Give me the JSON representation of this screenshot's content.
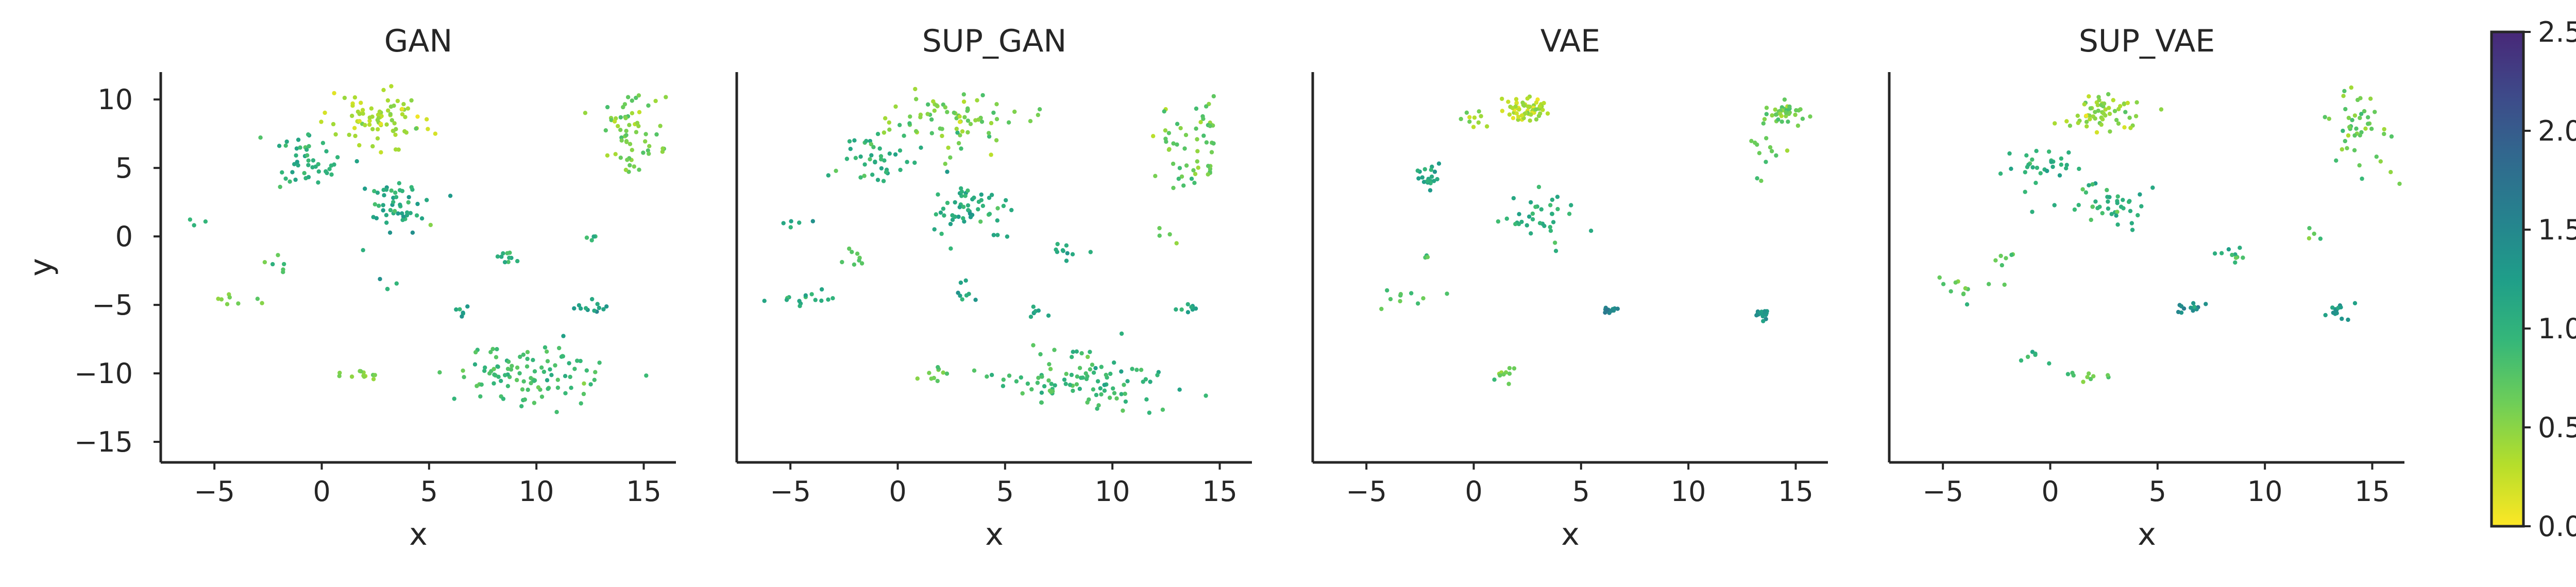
{
  "chart_data": {
    "type": "scatter",
    "panels": [
      {
        "title": "GAN",
        "xlabel": "x",
        "ylabel": "y",
        "xlim": [
          -7.5,
          16.5
        ],
        "ylim": [
          -16.5,
          12
        ],
        "xticks": [
          -5,
          0,
          5,
          10,
          15
        ],
        "yticks": [
          10,
          5,
          0,
          -5,
          -10,
          -15
        ],
        "clusters": [
          {
            "x": 2.5,
            "y": 8.5,
            "sx": 1.2,
            "sy": 1.0,
            "n": 80,
            "c": 0.3
          },
          {
            "x": -0.5,
            "y": 5.5,
            "sx": 0.8,
            "sy": 0.9,
            "n": 45,
            "c": 0.9
          },
          {
            "x": 3.5,
            "y": 2.0,
            "sx": 0.8,
            "sy": 1.0,
            "n": 50,
            "c": 0.95
          },
          {
            "x": 14.5,
            "y": 7.5,
            "sx": 0.7,
            "sy": 1.3,
            "n": 60,
            "c": 0.5
          },
          {
            "x": 9.5,
            "y": -10.0,
            "sx": 1.7,
            "sy": 1.1,
            "n": 100,
            "c": 0.75
          },
          {
            "x": 12.5,
            "y": -5.2,
            "sx": 0.4,
            "sy": 0.3,
            "n": 12,
            "c": 1.05
          },
          {
            "x": 8.5,
            "y": -1.5,
            "sx": 0.5,
            "sy": 0.3,
            "n": 10,
            "c": 0.9
          },
          {
            "x": 1.8,
            "y": -10.0,
            "sx": 0.5,
            "sy": 0.3,
            "n": 12,
            "c": 0.45
          },
          {
            "x": -2.0,
            "y": -2.0,
            "sx": 0.3,
            "sy": 0.3,
            "n": 6,
            "c": 0.7
          },
          {
            "x": -4.0,
            "y": -4.5,
            "sx": 0.8,
            "sy": 0.3,
            "n": 8,
            "c": 0.5
          },
          {
            "x": -6.0,
            "y": 1.0,
            "sx": 0.4,
            "sy": 0.2,
            "n": 3,
            "c": 0.9
          },
          {
            "x": 6.5,
            "y": -5.5,
            "sx": 0.3,
            "sy": 0.3,
            "n": 6,
            "c": 1.05
          },
          {
            "x": 12.5,
            "y": 0.0,
            "sx": 0.3,
            "sy": 0.3,
            "n": 4,
            "c": 0.8
          },
          {
            "x": 3.0,
            "y": -4.0,
            "sx": 0.3,
            "sy": 0.4,
            "n": 4,
            "c": 0.9
          }
        ]
      },
      {
        "title": "SUP_GAN",
        "xlabel": "x",
        "ylabel": "",
        "xlim": [
          -7.5,
          16.5
        ],
        "ylim": [
          -16.5,
          12
        ],
        "xticks": [
          -5,
          0,
          5,
          10,
          15
        ],
        "yticks": [],
        "clusters": [
          {
            "x": 2.5,
            "y": 8.5,
            "sx": 1.3,
            "sy": 1.1,
            "n": 75,
            "c": 0.5
          },
          {
            "x": -1.0,
            "y": 5.5,
            "sx": 0.9,
            "sy": 0.9,
            "n": 40,
            "c": 0.85
          },
          {
            "x": 3.5,
            "y": 2.0,
            "sx": 0.9,
            "sy": 1.1,
            "n": 55,
            "c": 0.95
          },
          {
            "x": 14.0,
            "y": 6.5,
            "sx": 0.9,
            "sy": 1.8,
            "n": 55,
            "c": 0.6
          },
          {
            "x": 9.0,
            "y": -10.5,
            "sx": 1.9,
            "sy": 1.1,
            "n": 100,
            "c": 0.8
          },
          {
            "x": 13.5,
            "y": -5.2,
            "sx": 0.3,
            "sy": 0.3,
            "n": 8,
            "c": 1.0
          },
          {
            "x": 8.0,
            "y": -1.0,
            "sx": 0.5,
            "sy": 0.3,
            "n": 10,
            "c": 0.9
          },
          {
            "x": 1.8,
            "y": -10.0,
            "sx": 0.5,
            "sy": 0.3,
            "n": 10,
            "c": 0.5
          },
          {
            "x": -2.0,
            "y": -1.5,
            "sx": 0.3,
            "sy": 0.4,
            "n": 8,
            "c": 0.7
          },
          {
            "x": -4.0,
            "y": -4.5,
            "sx": 0.9,
            "sy": 0.3,
            "n": 15,
            "c": 0.9
          },
          {
            "x": -5.0,
            "y": 1.0,
            "sx": 0.5,
            "sy": 0.2,
            "n": 5,
            "c": 0.9
          },
          {
            "x": 6.5,
            "y": -5.5,
            "sx": 0.4,
            "sy": 0.3,
            "n": 7,
            "c": 1.05
          },
          {
            "x": 3.0,
            "y": -4.0,
            "sx": 0.3,
            "sy": 0.5,
            "n": 8,
            "c": 1.0
          },
          {
            "x": 12.5,
            "y": 0.0,
            "sx": 0.4,
            "sy": 0.4,
            "n": 4,
            "c": 0.7
          }
        ]
      },
      {
        "title": "VAE",
        "xlabel": "x",
        "ylabel": "",
        "xlim": [
          -7.5,
          16.5
        ],
        "ylim": [
          -16.5,
          12
        ],
        "xticks": [
          -5,
          0,
          5,
          10,
          15
        ],
        "yticks": [],
        "clusters": [
          {
            "x": 2.5,
            "y": 9.4,
            "sx": 0.5,
            "sy": 0.4,
            "n": 60,
            "c": 0.25
          },
          {
            "x": 0.0,
            "y": 8.5,
            "sx": 0.4,
            "sy": 0.3,
            "n": 10,
            "c": 0.4
          },
          {
            "x": -2.0,
            "y": 4.5,
            "sx": 0.4,
            "sy": 0.5,
            "n": 20,
            "c": 1.0
          },
          {
            "x": 2.8,
            "y": 1.5,
            "sx": 0.8,
            "sy": 1.2,
            "n": 35,
            "c": 0.9
          },
          {
            "x": 14.5,
            "y": 9.0,
            "sx": 0.5,
            "sy": 0.4,
            "n": 40,
            "c": 0.55
          },
          {
            "x": 13.5,
            "y": 5.5,
            "sx": 0.6,
            "sy": 0.8,
            "n": 12,
            "c": 0.6
          },
          {
            "x": 6.3,
            "y": -5.3,
            "sx": 0.2,
            "sy": 0.15,
            "n": 15,
            "c": 1.35
          },
          {
            "x": 13.4,
            "y": -5.6,
            "sx": 0.2,
            "sy": 0.2,
            "n": 18,
            "c": 1.2
          },
          {
            "x": 1.5,
            "y": -10.0,
            "sx": 0.4,
            "sy": 0.25,
            "n": 10,
            "c": 0.6
          },
          {
            "x": -3.5,
            "y": -4.5,
            "sx": 0.8,
            "sy": 0.3,
            "n": 10,
            "c": 0.6
          },
          {
            "x": -2.0,
            "y": -1.5,
            "sx": 0.2,
            "sy": 0.2,
            "n": 3,
            "c": 0.7
          }
        ]
      },
      {
        "title": "SUP_VAE",
        "xlabel": "x",
        "ylabel": "",
        "xlim": [
          -7.5,
          16.5
        ],
        "ylim": [
          -16.5,
          12
        ],
        "xticks": [
          -5,
          0,
          5,
          10,
          15
        ],
        "yticks": [],
        "clusters": [
          {
            "x": 2.5,
            "y": 9.0,
            "sx": 0.9,
            "sy": 0.7,
            "n": 60,
            "c": 0.4
          },
          {
            "x": -0.5,
            "y": 5.0,
            "sx": 0.9,
            "sy": 0.8,
            "n": 30,
            "c": 0.9
          },
          {
            "x": 3.0,
            "y": 2.5,
            "sx": 1.0,
            "sy": 0.9,
            "n": 40,
            "c": 0.9
          },
          {
            "x": 14.5,
            "y": 8.0,
            "sx": 0.7,
            "sy": 1.4,
            "n": 45,
            "c": 0.6
          },
          {
            "x": 6.5,
            "y": -5.3,
            "sx": 0.3,
            "sy": 0.2,
            "n": 12,
            "c": 1.25
          },
          {
            "x": 13.5,
            "y": -5.5,
            "sx": 0.3,
            "sy": 0.3,
            "n": 14,
            "c": 1.1
          },
          {
            "x": 8.5,
            "y": -1.5,
            "sx": 0.5,
            "sy": 0.3,
            "n": 10,
            "c": 0.8
          },
          {
            "x": 1.5,
            "y": -10.0,
            "sx": 0.6,
            "sy": 0.3,
            "n": 10,
            "c": 0.6
          },
          {
            "x": -2.0,
            "y": -1.5,
            "sx": 0.3,
            "sy": 0.3,
            "n": 6,
            "c": 0.6
          },
          {
            "x": -4.0,
            "y": -4.0,
            "sx": 0.9,
            "sy": 0.4,
            "n": 12,
            "c": 0.7
          },
          {
            "x": 12.5,
            "y": 0.0,
            "sx": 0.3,
            "sy": 0.3,
            "n": 4,
            "c": 0.7
          },
          {
            "x": -0.5,
            "y": -9.0,
            "sx": 0.4,
            "sy": 0.4,
            "n": 6,
            "c": 0.9
          }
        ]
      }
    ],
    "colorbar": {
      "min": 0.0,
      "max": 2.5,
      "ticks": [
        "0.0",
        "0.5",
        "1.0",
        "1.5",
        "2.0",
        "2.5"
      ],
      "tick_values": [
        0.0,
        0.5,
        1.0,
        1.5,
        2.0,
        2.5
      ],
      "colormap": "viridis_r"
    }
  }
}
